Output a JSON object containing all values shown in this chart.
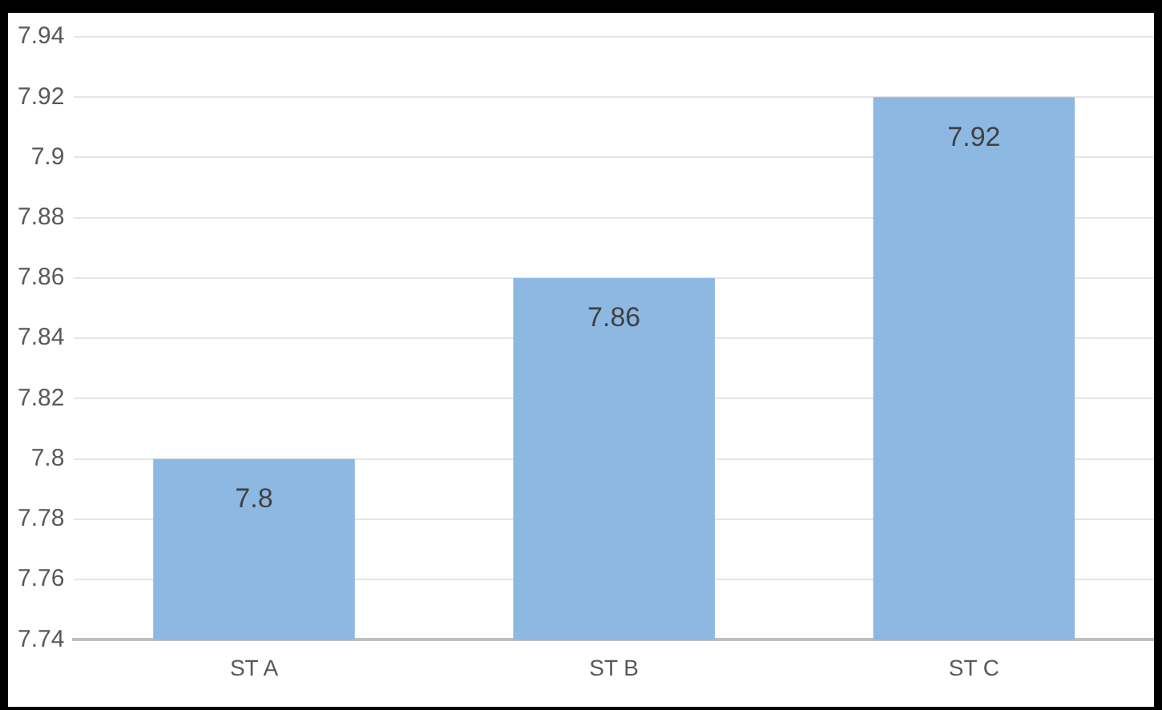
{
  "chart_data": {
    "type": "bar",
    "categories": [
      "ST A",
      "ST B",
      "ST C"
    ],
    "values": [
      7.8,
      7.86,
      7.92
    ],
    "color": "#8db8e2",
    "ylim": [
      7.74,
      7.94
    ],
    "yticks": [
      7.74,
      7.76,
      7.78,
      7.8,
      7.82,
      7.84,
      7.86,
      7.88,
      7.9,
      7.92,
      7.94
    ],
    "grid": "y",
    "data_labels": true,
    "legend": false
  }
}
